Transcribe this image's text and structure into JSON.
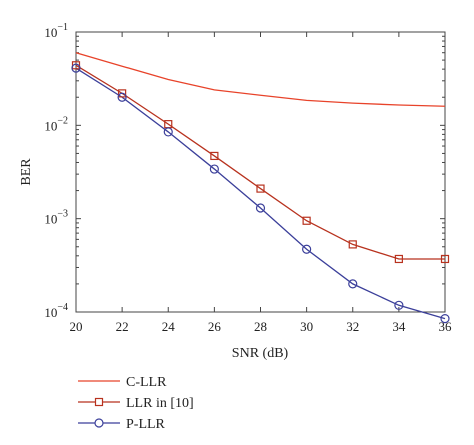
{
  "chart_data": {
    "type": "line",
    "xlabel": "SNR (dB)",
    "ylabel": "BER",
    "xlim": [
      20,
      36
    ],
    "ylim": [
      0.0001,
      0.1
    ],
    "yscale": "log",
    "grid": false,
    "legend_position": "bottom-left, below plot",
    "x_ticks": [
      "20",
      "22",
      "24",
      "26",
      "28",
      "30",
      "32",
      "34",
      "36"
    ],
    "y_ticks": [
      {
        "value": 0.1,
        "base": "10",
        "exp": "−1"
      },
      {
        "value": 0.01,
        "base": "10",
        "exp": "−2"
      },
      {
        "value": 0.001,
        "base": "10",
        "exp": "−3"
      },
      {
        "value": 0.0001,
        "base": "10",
        "exp": "−4"
      }
    ],
    "x": [
      20,
      22,
      24,
      26,
      28,
      30,
      32,
      34,
      36
    ],
    "series": [
      {
        "name": "C-LLR",
        "color": "#e8432a",
        "marker": "none",
        "values": [
          0.06,
          0.043,
          0.031,
          0.024,
          0.021,
          0.0185,
          0.0173,
          0.0165,
          0.016
        ]
      },
      {
        "name": "LLR in [10]",
        "color": "#b8321e",
        "marker": "square",
        "values": [
          0.044,
          0.022,
          0.0103,
          0.0047,
          0.0021,
          0.00095,
          0.00053,
          0.00037,
          0.00037
        ]
      },
      {
        "name": "P-LLR",
        "color": "#3b3f9a",
        "marker": "circle",
        "values": [
          0.041,
          0.02,
          0.0085,
          0.0034,
          0.0013,
          0.00047,
          0.0002,
          0.000118,
          8.5e-05
        ]
      }
    ]
  }
}
